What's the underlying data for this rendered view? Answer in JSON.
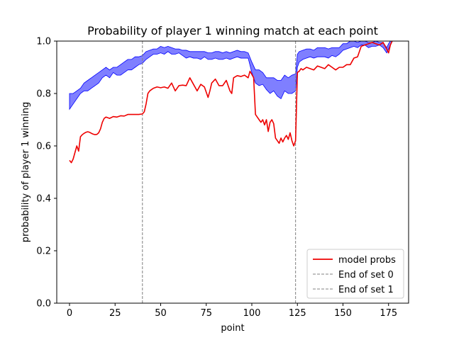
{
  "chart_data": {
    "type": "line",
    "title": "Probability of player 1 winning match at each point",
    "xlabel": "point",
    "ylabel": "probability of player 1 winning",
    "xlim": [
      -7,
      186
    ],
    "ylim": [
      0.0,
      1.0
    ],
    "xticks": [
      0,
      25,
      50,
      75,
      100,
      125,
      150,
      175
    ],
    "yticks": [
      0.0,
      0.2,
      0.4,
      0.6,
      0.8,
      1.0
    ],
    "xtick_labels": [
      "0",
      "25",
      "50",
      "75",
      "100",
      "125",
      "150",
      "175"
    ],
    "ytick_labels": [
      "0.0",
      "0.2",
      "0.4",
      "0.6",
      "0.8",
      "1.0"
    ],
    "grid": false,
    "legend_position": "lower-right",
    "series": [
      {
        "name": "model probs",
        "kind": "line",
        "color": "#ee0000",
        "x": [
          0,
          1,
          2,
          3,
          4,
          5,
          6,
          7,
          8,
          9,
          10,
          11,
          12,
          13,
          14,
          15,
          16,
          17,
          18,
          19,
          20,
          22,
          24,
          26,
          28,
          30,
          32,
          34,
          36,
          38,
          40,
          41,
          42,
          43,
          44,
          45,
          46,
          48,
          50,
          52,
          54,
          56,
          58,
          60,
          62,
          64,
          66,
          68,
          70,
          72,
          74,
          76,
          77,
          78,
          80,
          82,
          84,
          86,
          88,
          89,
          90,
          92,
          94,
          96,
          98,
          99,
          100,
          101,
          102,
          103,
          104,
          105,
          106,
          107,
          108,
          109,
          110,
          111,
          112,
          113,
          114,
          115,
          116,
          117,
          118,
          119,
          120,
          121,
          122,
          123,
          124,
          125,
          126,
          127,
          128,
          130,
          132,
          134,
          136,
          138,
          140,
          142,
          144,
          146,
          148,
          150,
          152,
          154,
          156,
          158,
          160,
          162,
          164,
          166,
          168,
          170,
          172,
          174,
          175,
          176,
          177
        ],
        "y": [
          0.545,
          0.536,
          0.55,
          0.575,
          0.6,
          0.58,
          0.635,
          0.643,
          0.648,
          0.652,
          0.654,
          0.652,
          0.648,
          0.645,
          0.643,
          0.644,
          0.65,
          0.665,
          0.69,
          0.705,
          0.71,
          0.705,
          0.712,
          0.71,
          0.715,
          0.714,
          0.72,
          0.72,
          0.72,
          0.72,
          0.722,
          0.73,
          0.76,
          0.8,
          0.81,
          0.815,
          0.82,
          0.825,
          0.822,
          0.825,
          0.82,
          0.84,
          0.81,
          0.83,
          0.832,
          0.83,
          0.86,
          0.835,
          0.81,
          0.835,
          0.825,
          0.785,
          0.81,
          0.84,
          0.855,
          0.83,
          0.83,
          0.85,
          0.81,
          0.8,
          0.86,
          0.868,
          0.865,
          0.87,
          0.86,
          0.885,
          0.873,
          0.86,
          0.72,
          0.71,
          0.7,
          0.69,
          0.7,
          0.68,
          0.7,
          0.655,
          0.69,
          0.7,
          0.685,
          0.63,
          0.62,
          0.61,
          0.63,
          0.615,
          0.63,
          0.64,
          0.625,
          0.65,
          0.62,
          0.6,
          0.62,
          0.88,
          0.885,
          0.895,
          0.89,
          0.9,
          0.895,
          0.89,
          0.905,
          0.9,
          0.895,
          0.91,
          0.9,
          0.89,
          0.9,
          0.9,
          0.91,
          0.91,
          0.935,
          0.94,
          0.98,
          0.985,
          0.99,
          0.995,
          0.99,
          0.985,
          0.995,
          0.97,
          0.955,
          0.985,
          1.0
        ]
      },
      {
        "name": "",
        "kind": "band",
        "color": "#0000ff",
        "x": [
          0,
          2,
          4,
          6,
          8,
          10,
          12,
          14,
          16,
          18,
          20,
          22,
          24,
          26,
          28,
          30,
          32,
          34,
          36,
          38,
          40,
          42,
          44,
          46,
          48,
          50,
          52,
          54,
          56,
          58,
          60,
          62,
          64,
          66,
          68,
          70,
          72,
          74,
          76,
          78,
          80,
          82,
          84,
          86,
          88,
          90,
          92,
          94,
          96,
          98,
          100,
          102,
          104,
          106,
          108,
          110,
          112,
          114,
          116,
          118,
          120,
          122,
          124,
          125,
          126,
          128,
          130,
          132,
          134,
          136,
          138,
          140,
          142,
          144,
          146,
          148,
          150,
          152,
          154,
          156,
          158,
          160,
          162,
          164,
          166,
          168,
          170,
          172,
          174,
          175,
          176,
          177
        ],
        "lower": [
          0.74,
          0.76,
          0.78,
          0.8,
          0.81,
          0.81,
          0.82,
          0.83,
          0.84,
          0.86,
          0.87,
          0.86,
          0.88,
          0.87,
          0.87,
          0.88,
          0.89,
          0.89,
          0.9,
          0.91,
          0.915,
          0.93,
          0.94,
          0.95,
          0.95,
          0.955,
          0.95,
          0.96,
          0.95,
          0.95,
          0.955,
          0.945,
          0.935,
          0.94,
          0.935,
          0.935,
          0.93,
          0.94,
          0.93,
          0.93,
          0.935,
          0.93,
          0.93,
          0.935,
          0.93,
          0.935,
          0.94,
          0.935,
          0.935,
          0.935,
          0.88,
          0.84,
          0.83,
          0.835,
          0.815,
          0.8,
          0.81,
          0.79,
          0.78,
          0.81,
          0.8,
          0.8,
          0.81,
          0.9,
          0.92,
          0.93,
          0.935,
          0.94,
          0.935,
          0.94,
          0.94,
          0.94,
          0.935,
          0.945,
          0.94,
          0.95,
          0.965,
          0.97,
          0.975,
          0.98,
          0.975,
          0.985,
          0.985,
          0.975,
          0.98,
          0.98,
          0.985,
          0.975,
          0.955,
          0.97,
          0.985,
          1.0
        ],
        "upper": [
          0.8,
          0.8,
          0.81,
          0.82,
          0.84,
          0.85,
          0.86,
          0.87,
          0.88,
          0.89,
          0.9,
          0.89,
          0.9,
          0.9,
          0.91,
          0.92,
          0.93,
          0.93,
          0.94,
          0.94,
          0.945,
          0.96,
          0.965,
          0.97,
          0.97,
          0.98,
          0.975,
          0.98,
          0.975,
          0.97,
          0.97,
          0.965,
          0.965,
          0.96,
          0.96,
          0.96,
          0.96,
          0.96,
          0.955,
          0.955,
          0.96,
          0.96,
          0.955,
          0.96,
          0.955,
          0.96,
          0.965,
          0.96,
          0.96,
          0.955,
          0.92,
          0.89,
          0.89,
          0.88,
          0.86,
          0.86,
          0.86,
          0.85,
          0.85,
          0.87,
          0.86,
          0.87,
          0.875,
          0.95,
          0.96,
          0.965,
          0.97,
          0.97,
          0.965,
          0.975,
          0.975,
          0.975,
          0.97,
          0.975,
          0.975,
          0.975,
          0.99,
          0.99,
          1.0,
          1.0,
          0.995,
          1.0,
          1.0,
          0.995,
          0.995,
          1.0,
          0.995,
          0.995,
          0.975,
          0.99,
          1.0,
          1.0
        ]
      },
      {
        "name": "End of set 0",
        "kind": "vline",
        "color": "#808080",
        "x": 40
      },
      {
        "name": "End of set 1",
        "kind": "vline",
        "color": "#808080",
        "x": 124
      }
    ]
  }
}
